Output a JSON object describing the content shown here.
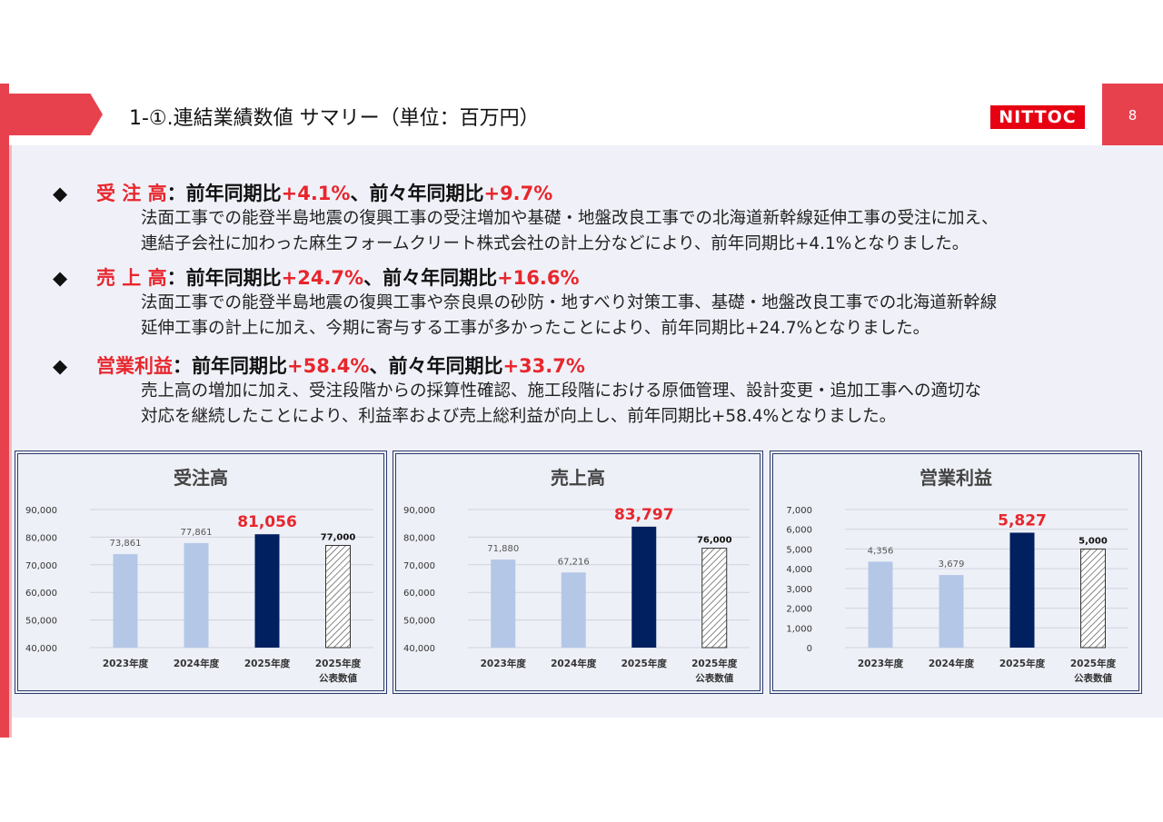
{
  "header": {
    "title": "1-①.連結業績数値 サマリー（単位：百万円）",
    "logo_text": "NITTOC",
    "page_number": "8"
  },
  "sections": [
    {
      "label": "受 注 高",
      "colon": "：",
      "text_before": "前年同期比",
      "value1": "+4.1%",
      "text_middle": "、前々年同期比",
      "value2": "+9.7%",
      "body_lines": [
        "法面工事での能登半島地震の復興工事の受注増加や基礎・地盤改良工事での北海道新幹線延伸工事の受注に加え、",
        "連結子会社に加わった麻生フォームクリート株式会社の計上分などにより、前年同期比+4.1%となりました。"
      ]
    },
    {
      "label": "売 上 高",
      "colon": "：",
      "text_before": "前年同期比",
      "value1": "+24.7%",
      "text_middle": "、前々年同期比",
      "value2": "+16.6%",
      "body_lines": [
        "法面工事での能登半島地震の復興工事や奈良県の砂防・地すべり対策工事、基礎・地盤改良工事での北海道新幹線",
        "延伸工事の計上に加え、今期に寄与する工事が多かったことにより、前年同期比+24.7%となりました。"
      ]
    },
    {
      "label": "営業利益",
      "colon": "：",
      "text_before": "前年同期比",
      "value1": "+58.4%",
      "text_middle": "、前々年同期比",
      "value2": "+33.7%",
      "body_lines": [
        "売上高の増加に加え、受注段階からの採算性確認、施工段階における原価管理、設計変更・追加工事への適切な",
        "対応を継続したことにより、利益率および売上総利益が向上し、前年同期比+58.4%となりました。"
      ]
    }
  ],
  "colors": {
    "accent_red": "#e8414e",
    "value_red": "#e8262d",
    "bar_past": "#b4c7e7",
    "bar_current": "#002060",
    "forecast_hatch": "#555555"
  },
  "chart_data": [
    {
      "type": "bar",
      "title": "受注高",
      "categories": [
        "2023年度",
        "2024年度",
        "2025年度",
        "2025年度\n公表数値"
      ],
      "values": [
        73861,
        77861,
        81056,
        77000
      ],
      "labels": [
        "73,861",
        "77,861",
        "81,056",
        "77,000"
      ],
      "ylim": [
        40000,
        90000
      ],
      "yticks": [
        40000,
        50000,
        60000,
        70000,
        80000,
        90000
      ],
      "ytick_labels": [
        "40,000",
        "50,000",
        "60,000",
        "70,000",
        "80,000",
        "90,000"
      ],
      "styles": [
        "past",
        "past",
        "current",
        "forecast"
      ],
      "grid": true
    },
    {
      "type": "bar",
      "title": "売上高",
      "categories": [
        "2023年度",
        "2024年度",
        "2025年度",
        "2025年度\n公表数値"
      ],
      "values": [
        71880,
        67216,
        83797,
        76000
      ],
      "labels": [
        "71,880",
        "67,216",
        "83,797",
        "76,000"
      ],
      "ylim": [
        40000,
        90000
      ],
      "yticks": [
        40000,
        50000,
        60000,
        70000,
        80000,
        90000
      ],
      "ytick_labels": [
        "40,000",
        "50,000",
        "60,000",
        "70,000",
        "80,000",
        "90,000"
      ],
      "styles": [
        "past",
        "past",
        "current",
        "forecast"
      ],
      "grid": true
    },
    {
      "type": "bar",
      "title": "営業利益",
      "categories": [
        "2023年度",
        "2024年度",
        "2025年度",
        "2025年度\n公表数値"
      ],
      "values": [
        4356,
        3679,
        5827,
        5000
      ],
      "labels": [
        "4,356",
        "3,679",
        "5,827",
        "5,000"
      ],
      "ylim": [
        0,
        7000
      ],
      "yticks": [
        0,
        1000,
        2000,
        3000,
        4000,
        5000,
        6000,
        7000
      ],
      "ytick_labels": [
        "0",
        "1,000",
        "2,000",
        "3,000",
        "4,000",
        "5,000",
        "6,000",
        "7,000"
      ],
      "styles": [
        "past",
        "past",
        "current",
        "forecast"
      ],
      "grid": true
    }
  ]
}
